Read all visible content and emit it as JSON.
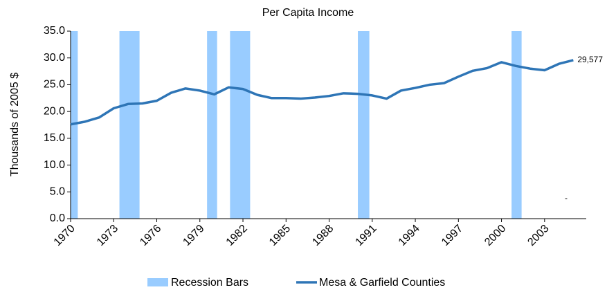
{
  "chart_data": {
    "type": "line",
    "title": "Per Capita Income",
    "y_label": "Thousands of 2005 $",
    "x": [
      1970,
      1971,
      1972,
      1973,
      1974,
      1975,
      1976,
      1977,
      1978,
      1979,
      1980,
      1981,
      1982,
      1983,
      1984,
      1985,
      1986,
      1987,
      1988,
      1989,
      1990,
      1991,
      1992,
      1993,
      1994,
      1995,
      1996,
      1997,
      1998,
      1999,
      2000,
      2001,
      2002,
      2003,
      2004,
      2005
    ],
    "series": [
      {
        "name": "Mesa & Garfield Counties",
        "color": "#2e75b6",
        "values": [
          17.6,
          18.1,
          18.9,
          20.6,
          21.4,
          21.5,
          22.0,
          23.5,
          24.3,
          23.9,
          23.2,
          24.5,
          24.2,
          23.1,
          22.5,
          22.5,
          22.4,
          22.6,
          22.9,
          23.4,
          23.3,
          23.0,
          22.4,
          23.9,
          24.4,
          25.0,
          25.3,
          26.5,
          27.6,
          28.1,
          29.2,
          28.5,
          28.0,
          27.7,
          28.9,
          29.577
        ],
        "value_labels": {
          "35": "29,577"
        }
      }
    ],
    "recessions": {
      "name": "Recession Bars",
      "color": "#99ccff",
      "spans": [
        [
          1970,
          1970.5
        ],
        [
          1973.4,
          1974.8
        ],
        [
          1979.5,
          1980.2
        ],
        [
          1981.1,
          1982.5
        ],
        [
          1990.0,
          1990.8
        ],
        [
          2000.7,
          2001.4
        ]
      ]
    },
    "annotation": "-",
    "xlim": [
      1970,
      2005.9
    ],
    "xticks": [
      1970,
      1973,
      1976,
      1979,
      1982,
      1985,
      1988,
      1991,
      1994,
      1997,
      2000,
      2003
    ],
    "ylim": [
      0,
      35
    ],
    "yticks": [
      {
        "value": 0,
        "label": "0.0"
      },
      {
        "value": 5,
        "label": "5.0"
      },
      {
        "value": 10,
        "label": "10.0"
      },
      {
        "value": 15,
        "label": "15.0"
      },
      {
        "value": 20,
        "label": "20.0"
      },
      {
        "value": 25,
        "label": "25.0"
      },
      {
        "value": 30,
        "label": "30.0"
      },
      {
        "value": 35,
        "label": "35.0"
      }
    ],
    "grid": false,
    "legend": "bottom"
  }
}
